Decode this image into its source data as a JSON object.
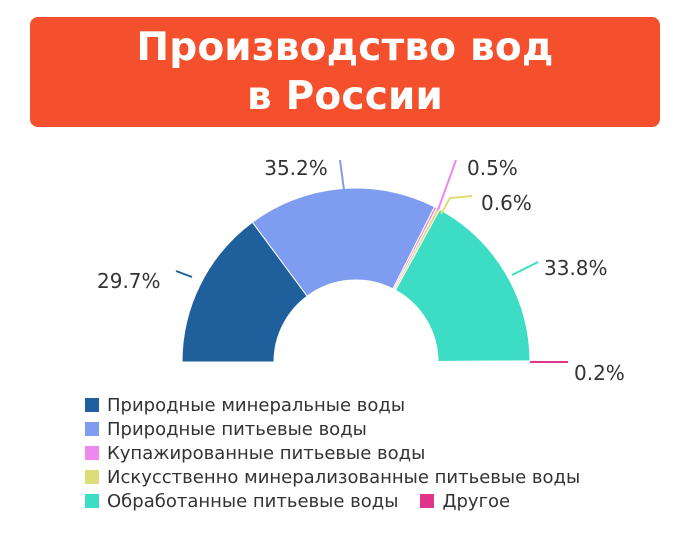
{
  "title": {
    "line1": "Производство вод",
    "line2": "в России",
    "background": "#F4502D"
  },
  "chart_data": {
    "type": "pie",
    "subtype": "half-donut",
    "series": [
      {
        "name": "Природные минеральные воды",
        "value": 29.7,
        "label": "29.7%",
        "color": "#1F5F9B"
      },
      {
        "name": "Природные питьевые воды",
        "value": 35.2,
        "label": "35.2%",
        "color": "#7E9CF0"
      },
      {
        "name": "Купажированные питьевые воды",
        "value": 0.5,
        "label": "0.5%",
        "color": "#EE88EE"
      },
      {
        "name": "Искусственно минерализованные питьевые воды",
        "value": 0.6,
        "label": "0.6%",
        "color": "#DDDD7A"
      },
      {
        "name": "Обработанные питьевые воды",
        "value": 33.8,
        "label": "33.8%",
        "color": "#3DDCC4"
      },
      {
        "name": "Другое",
        "value": 0.2,
        "label": "0.2%",
        "color": "#E0358A"
      }
    ],
    "legend_position": "bottom"
  }
}
